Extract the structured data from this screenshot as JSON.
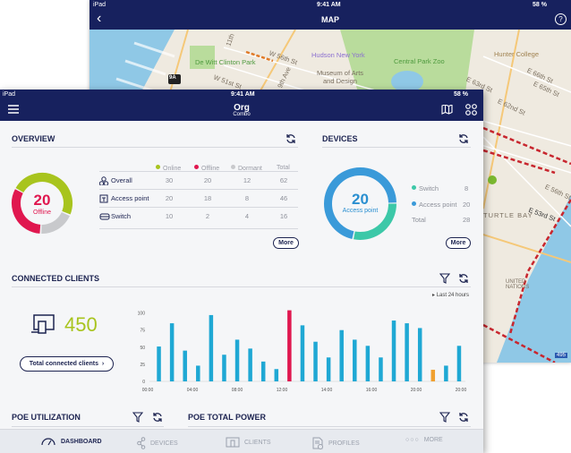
{
  "map_screen": {
    "status": {
      "device": "iPad",
      "time": "9:41 AM",
      "battery": "58 %"
    },
    "title": "MAP",
    "labels": [
      "De Witt Clinton Park",
      "W 56th St",
      "W 51st St",
      "11th",
      "9th Ave",
      "Hudson New York",
      "Museum of Arts and Design",
      "Central Park Zoo",
      "Hunter College",
      "E 66th St",
      "E 65th St",
      "E 63rd St",
      "E 62nd St",
      "E 56th St",
      "E 53rd St",
      "TURTLE BAY",
      "UNITED NATIONS",
      "9A",
      "495"
    ]
  },
  "status": {
    "device": "iPad",
    "time": "9:41 AM",
    "battery": "58 %"
  },
  "header": {
    "title": "Org",
    "subtitle": "Combo"
  },
  "overview": {
    "title": "OVERVIEW",
    "donut": {
      "value": "20",
      "label": "Offline"
    },
    "columns": [
      "Online",
      "Offline",
      "Dormant",
      "Total"
    ],
    "column_colors": [
      "#a8c41e",
      "#e0174f",
      "#c8c9cc"
    ],
    "rows": [
      {
        "label": "Overall",
        "icon": "network-icon",
        "values": [
          "30",
          "20",
          "12",
          "62"
        ]
      },
      {
        "label": "Access point",
        "icon": "access-point-icon",
        "values": [
          "20",
          "18",
          "8",
          "46"
        ]
      },
      {
        "label": "Switch",
        "icon": "switch-icon",
        "values": [
          "10",
          "2",
          "4",
          "16"
        ]
      }
    ],
    "more": "More"
  },
  "devices": {
    "title": "DEVICES",
    "donut": {
      "value": "20",
      "label": "Access point"
    },
    "legend": [
      {
        "label": "Switch",
        "value": "8",
        "color": "#3cc8a8"
      },
      {
        "label": "Access point",
        "value": "20",
        "color": "#3a9ad9"
      }
    ],
    "total_label": "Total",
    "total": "28",
    "more": "More"
  },
  "clients": {
    "title": "CONNECTED CLIENTS",
    "count": "450",
    "button": "Total connected clients",
    "range": "Last 24 hours"
  },
  "chart_data": {
    "type": "bar",
    "yticks": [
      "0",
      "25",
      "50",
      "75",
      "100"
    ],
    "ylim": [
      0,
      110
    ],
    "xticks": [
      "00:00",
      "04:00",
      "08:00",
      "12:00",
      "14:00",
      "16:00",
      "20:00",
      "20:00"
    ],
    "values": [
      51,
      85,
      45,
      23,
      97,
      39,
      61,
      48,
      29,
      18,
      104,
      82,
      58,
      35,
      75,
      61,
      52,
      35,
      89,
      85,
      78,
      17,
      23,
      52
    ],
    "highlight": {
      "10": "#e0174f",
      "21": "#f0a030"
    },
    "bar_color": "#1fa8d4"
  },
  "poe_util": {
    "title": "POE UTILIZATION"
  },
  "poe_power": {
    "title": "POE TOTAL POWER"
  },
  "tabs": [
    {
      "label": "DASHBOARD",
      "icon": "dashboard-icon",
      "active": true
    },
    {
      "label": "DEVICES",
      "icon": "devices-icon"
    },
    {
      "label": "CLIENTS",
      "icon": "clients-icon"
    },
    {
      "label": "PROFILES",
      "icon": "profiles-icon"
    },
    {
      "label": "MORE",
      "icon": "more-icon"
    }
  ]
}
